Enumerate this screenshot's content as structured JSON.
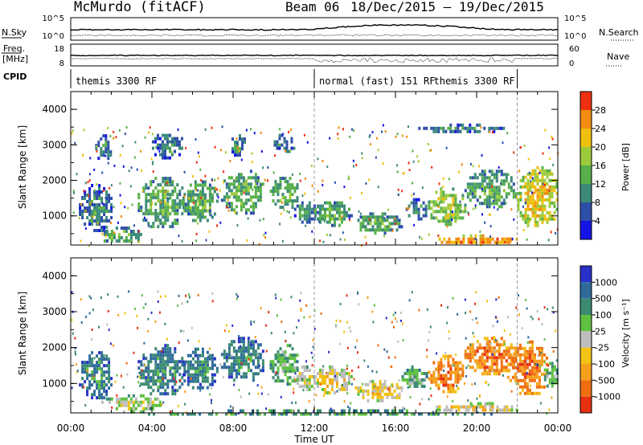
{
  "header": {
    "radar": "McMurdo (fitACF)",
    "beam": "Beam 06",
    "date_range": "18/Dec/2015 – 19/Dec/2015"
  },
  "status_panel": {
    "left_labels": {
      "nsky": "N.Sky",
      "freq": "Freq.",
      "freq_unit": "[MHz]",
      "cpid": "CPID"
    },
    "right_labels": {
      "nsearch": "N.Search",
      "nave": "Nave"
    },
    "nsky_ticks": [
      "10^5",
      "10^0"
    ],
    "nsearch_ticks": [
      "10^5",
      "10^0"
    ],
    "freq_ticks": [
      "18",
      "8"
    ],
    "nave_ticks": [
      "60",
      "0"
    ],
    "cpid_segments": [
      {
        "label": "themis 3300 RF",
        "start_hr": 0,
        "end_hr": 12
      },
      {
        "label": "normal (fast) 151 RF",
        "start_hr": 12,
        "end_hr": 22
      },
      {
        "label": "themis 3300 RF",
        "start_hr": 22,
        "end_hr": 24
      }
    ]
  },
  "x_axis": {
    "title": "Time UT",
    "ticks": [
      "00:00",
      "04:00",
      "08:00",
      "12:00",
      "16:00",
      "20:00",
      "00:00"
    ]
  },
  "chart_data": [
    {
      "type": "heatmap",
      "title": "Power",
      "xlabel": "Time UT",
      "ylabel": "Slant Range [km]",
      "x_range_hours": [
        0,
        24
      ],
      "ylim": [
        180,
        4500
      ],
      "y_ticks": [
        "1000",
        "2000",
        "3000",
        "4000"
      ],
      "colorbar": {
        "label": "Power [dB]",
        "ticks": [
          "4",
          "8",
          "12",
          "16",
          "20",
          "24",
          "28"
        ],
        "colors": [
          "#1414e6",
          "#2d4fa8",
          "#3d8a7a",
          "#58b04a",
          "#9ccc3c",
          "#f0c010",
          "#f28c12",
          "#ee3010"
        ]
      },
      "mode_boundaries_hr": [
        12,
        22
      ],
      "echo_regions": [
        {
          "t0": 0.4,
          "t1": 2.0,
          "r0": 600,
          "r1": 1900,
          "level": 2
        },
        {
          "t0": 1.2,
          "t1": 2.0,
          "r0": 2600,
          "r1": 3300,
          "level": 2
        },
        {
          "t0": 1.5,
          "t1": 3.5,
          "r0": 250,
          "r1": 700,
          "level": 3
        },
        {
          "t0": 3.3,
          "t1": 5.6,
          "r0": 700,
          "r1": 2100,
          "level": 3
        },
        {
          "t0": 4.0,
          "t1": 5.5,
          "r0": 2600,
          "r1": 3400,
          "level": 2
        },
        {
          "t0": 5.5,
          "t1": 7.2,
          "r0": 900,
          "r1": 2000,
          "level": 3
        },
        {
          "t0": 7.4,
          "t1": 9.5,
          "r0": 1100,
          "r1": 2300,
          "level": 3
        },
        {
          "t0": 7.8,
          "t1": 8.6,
          "r0": 2700,
          "r1": 3300,
          "level": 2
        },
        {
          "t0": 9.8,
          "t1": 11.2,
          "r0": 1200,
          "r1": 2100,
          "level": 3
        },
        {
          "t0": 10.0,
          "t1": 11.0,
          "r0": 2800,
          "r1": 3400,
          "level": 2
        },
        {
          "t0": 11.0,
          "t1": 12.0,
          "r0": 800,
          "r1": 1500,
          "level": 2
        },
        {
          "t0": 12.0,
          "t1": 13.8,
          "r0": 750,
          "r1": 1500,
          "level": 3
        },
        {
          "t0": 14.0,
          "t1": 16.3,
          "r0": 550,
          "r1": 1100,
          "level": 3
        },
        {
          "t0": 16.5,
          "t1": 17.5,
          "r0": 900,
          "r1": 1500,
          "level": 2
        },
        {
          "t0": 17.6,
          "t1": 19.4,
          "r0": 800,
          "r1": 1800,
          "level": 4
        },
        {
          "t0": 18.0,
          "t1": 22.0,
          "r0": 220,
          "r1": 480,
          "level": 6
        },
        {
          "t0": 19.4,
          "t1": 22.0,
          "r0": 1300,
          "r1": 2300,
          "level": 3
        },
        {
          "t0": 22.0,
          "t1": 24.0,
          "r0": 700,
          "r1": 2400,
          "level": 5
        },
        {
          "t0": 17.0,
          "t1": 21.5,
          "r0": 3400,
          "r1": 3600,
          "level": 2
        }
      ]
    },
    {
      "type": "heatmap",
      "title": "Velocity",
      "xlabel": "Time UT",
      "ylabel": "Slant Range [km]",
      "x_range_hours": [
        0,
        24
      ],
      "ylim": [
        180,
        4500
      ],
      "y_ticks": [
        "1000",
        "2000",
        "3000",
        "4000"
      ],
      "colorbar": {
        "label": "Velocity [m s⁻¹]",
        "ticks": [
          "1000",
          "500",
          "100",
          "25",
          "-25",
          "-100",
          "-500",
          "-1000"
        ],
        "colors": [
          "#2830c8",
          "#2e6a9a",
          "#3b8a72",
          "#5fc140",
          "#bdbdbd",
          "#f2c214",
          "#f5a01a",
          "#f06d10",
          "#e63010"
        ]
      },
      "mode_boundaries_hr": [
        12,
        22
      ],
      "echo_regions": [
        {
          "t0": 0.4,
          "t1": 2.0,
          "r0": 600,
          "r1": 1900,
          "level": 2
        },
        {
          "t0": 1.5,
          "t1": 4.5,
          "r0": 250,
          "r1": 700,
          "level": 4
        },
        {
          "t0": 3.3,
          "t1": 5.6,
          "r0": 700,
          "r1": 2100,
          "level": 2
        },
        {
          "t0": 5.5,
          "t1": 7.2,
          "r0": 900,
          "r1": 2000,
          "level": 2
        },
        {
          "t0": 7.4,
          "t1": 9.5,
          "r0": 1100,
          "r1": 2300,
          "level": 2
        },
        {
          "t0": 9.8,
          "t1": 11.2,
          "r0": 1000,
          "r1": 2100,
          "level": 3
        },
        {
          "t0": 11.0,
          "t1": 12.0,
          "r0": 800,
          "r1": 1500,
          "level": 4
        },
        {
          "t0": 12.0,
          "t1": 13.8,
          "r0": 750,
          "r1": 1500,
          "level": 5
        },
        {
          "t0": 14.0,
          "t1": 16.3,
          "r0": 550,
          "r1": 1100,
          "level": 5
        },
        {
          "t0": 16.3,
          "t1": 17.6,
          "r0": 900,
          "r1": 1500,
          "level": 3
        },
        {
          "t0": 17.6,
          "t1": 19.4,
          "r0": 800,
          "r1": 1800,
          "level": 7
        },
        {
          "t0": 18.0,
          "t1": 22.0,
          "r0": 220,
          "r1": 480,
          "level": 5
        },
        {
          "t0": 19.4,
          "t1": 22.0,
          "r0": 1300,
          "r1": 2300,
          "level": 7
        },
        {
          "t0": 21.5,
          "t1": 23.5,
          "r0": 700,
          "r1": 2200,
          "level": 7
        },
        {
          "t0": 23.2,
          "t1": 24.0,
          "r0": 900,
          "r1": 1600,
          "level": 3
        },
        {
          "t0": 0.0,
          "t1": 24.0,
          "r0": 180,
          "r1": 280,
          "level": 3
        }
      ]
    }
  ]
}
